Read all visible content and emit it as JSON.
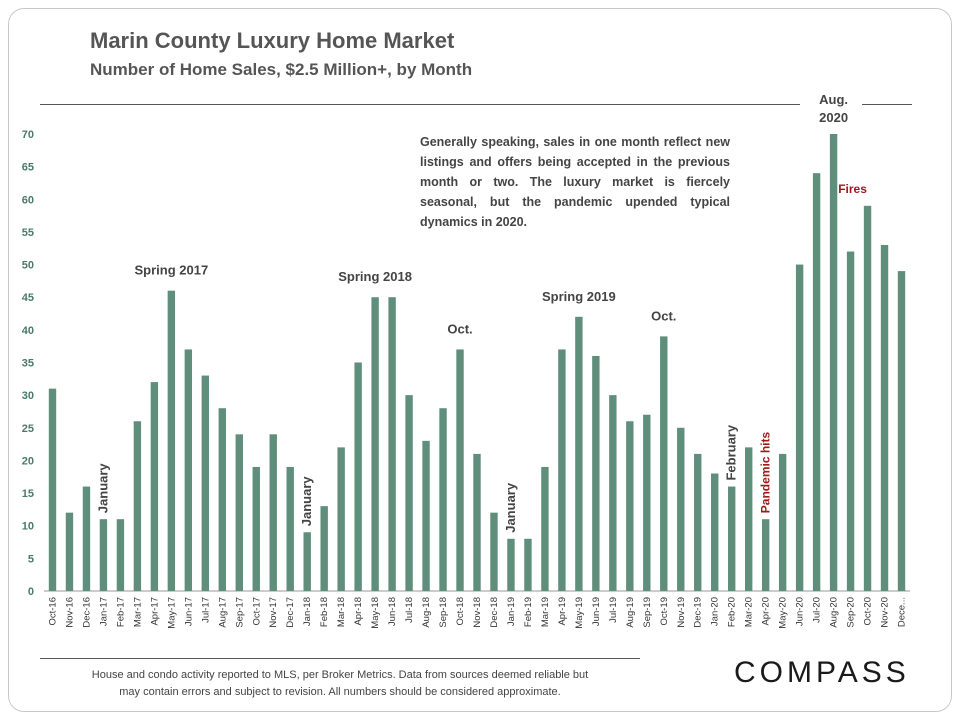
{
  "chart_data": {
    "type": "bar",
    "title": "Marin County Luxury Home Market",
    "subtitle": "Number of Home Sales, $2.5 Million+, by Month",
    "ylim": [
      0,
      70
    ],
    "yticks": [
      0,
      5,
      10,
      15,
      20,
      25,
      30,
      35,
      40,
      45,
      50,
      55,
      60,
      65,
      70
    ],
    "bar_color": "#5f8f7c",
    "grid": false,
    "categories": [
      "Oct-16",
      "Nov-16",
      "Dec-16",
      "Jan-17",
      "Feb-17",
      "Mar-17",
      "Apr-17",
      "May-17",
      "Jun-17",
      "Jul-17",
      "Aug-17",
      "Sep-17",
      "Oct-17",
      "Nov-17",
      "Dec-17",
      "Jan-18",
      "Feb-18",
      "Mar-18",
      "Apr-18",
      "May-18",
      "Jun-18",
      "Jul-18",
      "Aug-18",
      "Sep-18",
      "Oct-18",
      "Nov-18",
      "Dec-18",
      "Jan-19",
      "Feb-19",
      "Mar-19",
      "Apr-19",
      "May-19",
      "Jun-19",
      "Jul-19",
      "Aug-19",
      "Sep-19",
      "Oct-19",
      "Nov-19",
      "Dec-19",
      "Jan-20",
      "Feb-20",
      "Mar-20",
      "Apr-20",
      "May-20",
      "Jun-20",
      "Jul-20",
      "Aug-20",
      "Sep-20",
      "Oct-20",
      "Nov-20",
      "Dece..."
    ],
    "values": [
      31,
      12,
      16,
      11,
      11,
      26,
      32,
      46,
      37,
      33,
      28,
      24,
      19,
      24,
      19,
      9,
      13,
      22,
      35,
      45,
      45,
      30,
      23,
      28,
      37,
      21,
      12,
      8,
      8,
      19,
      37,
      42,
      36,
      30,
      26,
      27,
      39,
      25,
      21,
      18,
      16,
      22,
      11,
      21,
      50,
      64,
      70,
      52,
      59,
      53,
      49
    ],
    "annotations": [
      {
        "text": "Spring 2017",
        "index": 7,
        "value": 46,
        "color": "#444444"
      },
      {
        "text": "Spring 2018",
        "index": 19,
        "value": 45,
        "color": "#444444"
      },
      {
        "text": "Oct.",
        "index": 24,
        "value": 37,
        "color": "#444444"
      },
      {
        "text": "Spring 2019",
        "index": 31,
        "value": 42,
        "color": "#444444"
      },
      {
        "text": "Oct.",
        "index": 36,
        "value": 39,
        "color": "#444444"
      },
      {
        "text": "January",
        "index": 3,
        "value": 11,
        "color": "#444444",
        "vertical": true
      },
      {
        "text": "January",
        "index": 15,
        "value": 9,
        "color": "#444444",
        "vertical": true
      },
      {
        "text": "January",
        "index": 27,
        "value": 8,
        "color": "#444444",
        "vertical": true
      },
      {
        "text": "February",
        "index": 40,
        "value": 16,
        "color": "#444444",
        "vertical": true
      },
      {
        "text": "Pandemic hits",
        "index": 42,
        "value": 11,
        "color": "#a01818",
        "vertical": true
      },
      {
        "text": "Fires",
        "index": 47,
        "value": 59,
        "color": "#a01818"
      }
    ],
    "peak_label_lines": [
      "Aug.",
      "2020"
    ],
    "note": "Generally speaking, sales in one month reflect new listings and offers being accepted in the previous month or two. The luxury market is fiercely seasonal, but the pandemic upended typical dynamics in 2020."
  },
  "footnote_line1": "House and condo activity reported to MLS, per Broker Metrics. Data from sources deemed reliable but",
  "footnote_line2": "may contain errors and subject to revision. All numbers should be considered approximate.",
  "logo": "COMPASS"
}
